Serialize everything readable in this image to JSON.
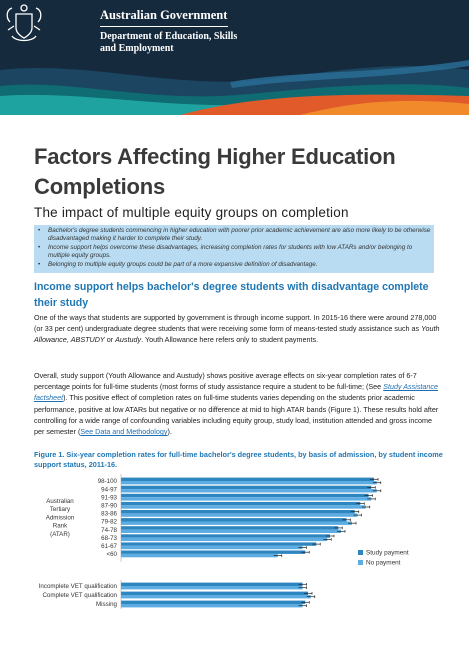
{
  "header": {
    "government": "Australian Government",
    "department": "Department of Education, Skills and Employment"
  },
  "title": "Factors Affecting Higher Education Completions",
  "subtitle": "The impact of multiple equity groups on completion",
  "summary": [
    "Bachelor's degree students commencing in higher education with poorer prior academic achievement are also more likely to be otherwise disadvantaged making it harder to complete their study.",
    "Income support helps overcome these disadvantages, increasing completion rates for students with low ATARs and/or belonging to multiple equity groups.",
    "Belonging to multiple equity groups could be part of a more expansive definition of disadvantage."
  ],
  "section_heading": "Income support helps bachelor's degree students with disadvantage complete their study",
  "para1": {
    "t1": "One of the ways that students are supported by government is through income support. In 2015-16 there were around 278,000 (or 33 per cent) undergraduate degree students that were receiving some form of means-tested study assistance such as ",
    "em1": "Youth Allowance",
    "t2": ", ",
    "em2": "ABSTUDY",
    "t3": " or ",
    "em3": "Austudy",
    "t4": ". Youth Allowance here refers only to student payments."
  },
  "para2": {
    "t1": "Overall, study support (Youth Allowance and Austudy) shows positive average effects on six-year completion rates of 6-7 percentage points for full-time students (most forms of study assistance require a student to be full-time; (See ",
    "link1": "Study Assistance factsheet",
    "t2": "). This positive effect of completion rates on full-time students varies depending on the students prior academic performance, positive at low ATARs but negative or no difference at mid to high ATAR bands (Figure 1). These results hold after controlling for a wide range of confounding variables including equity group, study load, institution attended and gross income per semester (",
    "link2": "See Data and Methodology",
    "t3": ")."
  },
  "figure_caption": "Figure 1. Six-year completion rates for full-time bachelor's degree students, by basis of admission, by student income support status, 2011-16.",
  "chart_data": {
    "type": "bar",
    "orientation": "horizontal",
    "group_label": "Australian Tertiary Admission Rank (ATAR)",
    "categories": [
      "98-100",
      "94-97",
      "91-93",
      "87-90",
      "83-86",
      "79-82",
      "74-78",
      "68-73",
      "61-67",
      "<60",
      "Incomplete VET qualification",
      "Complete VET qualification",
      "Missing"
    ],
    "series": [
      {
        "name": "Study payment",
        "color": "#2e86c1",
        "values": [
          92,
          91,
          90,
          87,
          85,
          82,
          79,
          76,
          71,
          67,
          66,
          68,
          67
        ]
      },
      {
        "name": "No payment",
        "color": "#5dade2",
        "values": [
          93,
          93,
          91,
          89,
          86,
          84,
          80,
          75,
          66,
          57,
          66,
          69,
          66
        ]
      }
    ],
    "xlim": [
      0,
      100
    ],
    "legend": "right",
    "error_bars": true
  }
}
